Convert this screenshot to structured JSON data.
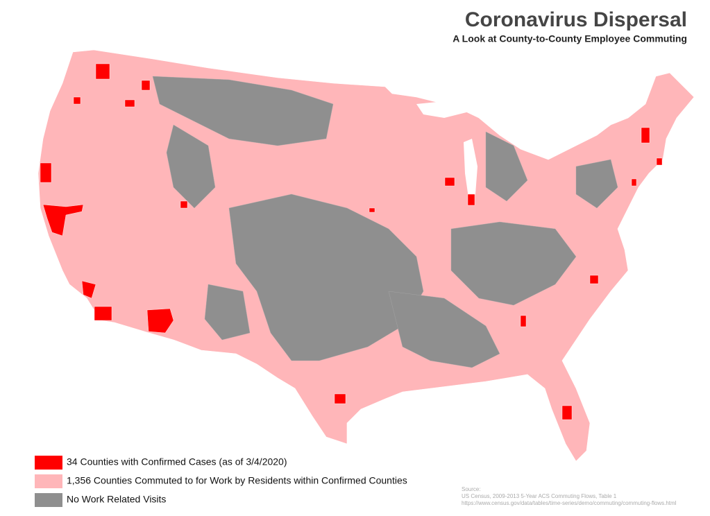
{
  "header": {
    "title": "Coronavirus Dispersal",
    "subtitle": "A Look at County-to-County Employee Commuting"
  },
  "legend": [
    {
      "label": "34 Counties with Confirmed Cases (as of 3/4/2020)",
      "color": "#ff0000"
    },
    {
      "label": "1,356 Counties Commuted to for Work by Residents within Confirmed Counties",
      "color": "#ffb6b9"
    },
    {
      "label": "No Work Related Visits",
      "color": "#8f8f8f"
    }
  ],
  "source": {
    "heading": "Source:",
    "lines": [
      "US Census, 2009-2013 5-Year ACS Commuting Flows, Table 1",
      "https://www.census.gov/data/tables/time-series/demo/commuting/commuting-flows.html"
    ]
  }
}
